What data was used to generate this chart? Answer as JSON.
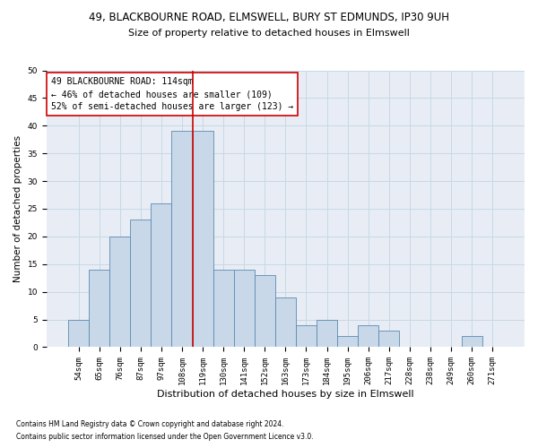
{
  "title1": "49, BLACKBOURNE ROAD, ELMSWELL, BURY ST EDMUNDS, IP30 9UH",
  "title2": "Size of property relative to detached houses in Elmswell",
  "xlabel": "Distribution of detached houses by size in Elmswell",
  "ylabel": "Number of detached properties",
  "footnote1": "Contains HM Land Registry data © Crown copyright and database right 2024.",
  "footnote2": "Contains public sector information licensed under the Open Government Licence v3.0.",
  "annotation_line1": "49 BLACKBOURNE ROAD: 114sqm",
  "annotation_line2": "← 46% of detached houses are smaller (109)",
  "annotation_line3": "52% of semi-detached houses are larger (123) →",
  "bar_color": "#c8d8e8",
  "bar_edge_color": "#5a8ab0",
  "vline_color": "#cc0000",
  "annotation_box_color": "#cc0000",
  "grid_color": "#c8d8e4",
  "bg_color": "#e8edf5",
  "categories": [
    "54sqm",
    "65sqm",
    "76sqm",
    "87sqm",
    "97sqm",
    "108sqm",
    "119sqm",
    "130sqm",
    "141sqm",
    "152sqm",
    "163sqm",
    "173sqm",
    "184sqm",
    "195sqm",
    "206sqm",
    "217sqm",
    "228sqm",
    "238sqm",
    "249sqm",
    "260sqm",
    "271sqm"
  ],
  "values": [
    5,
    14,
    20,
    23,
    26,
    39,
    39,
    14,
    14,
    13,
    9,
    4,
    5,
    2,
    4,
    3,
    0,
    0,
    0,
    2,
    0
  ],
  "ylim": [
    0,
    50
  ],
  "yticks": [
    0,
    5,
    10,
    15,
    20,
    25,
    30,
    35,
    40,
    45,
    50
  ],
  "vline_x": 5.5,
  "title1_fontsize": 8.5,
  "title2_fontsize": 8,
  "xlabel_fontsize": 8,
  "ylabel_fontsize": 7.5,
  "tick_fontsize": 6.5,
  "annotation_fontsize": 7,
  "footnote_fontsize": 5.5
}
